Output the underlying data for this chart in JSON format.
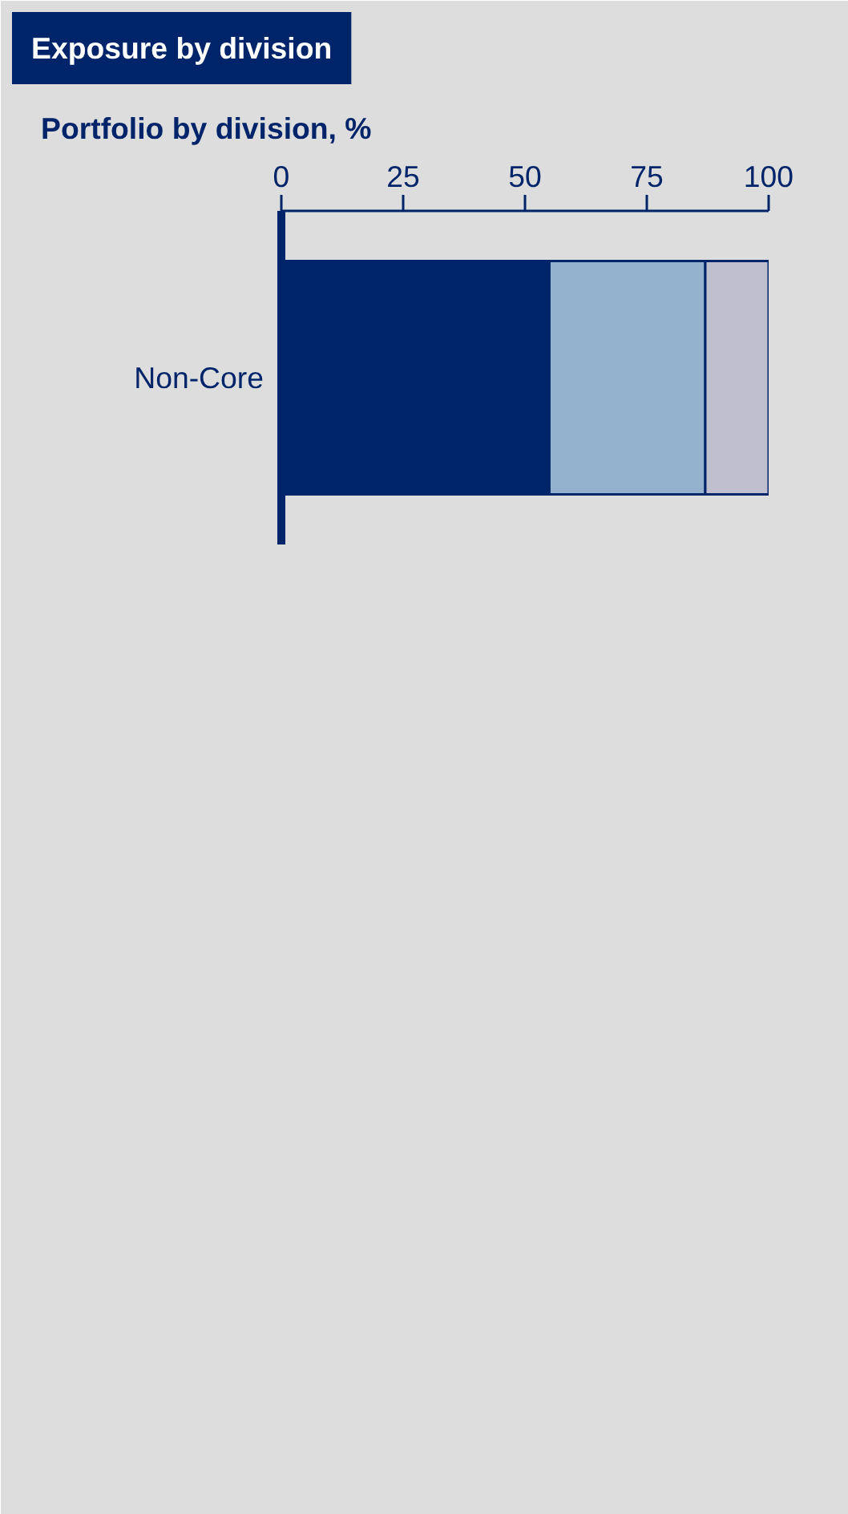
{
  "chart_data": {
    "type": "bar",
    "title": "Exposure by division",
    "subtitle": "Portfolio by division, %",
    "orientation": "horizontal",
    "stacked": true,
    "categories": [
      "Non-Core"
    ],
    "series": [
      {
        "color": "#002469",
        "values": [
          55
        ]
      },
      {
        "color": "#94b2cd",
        "values": [
          32
        ]
      },
      {
        "color": "#c0bfd0",
        "values": [
          13
        ]
      }
    ],
    "xlim": [
      0,
      100
    ],
    "xticks": [
      0,
      25,
      50,
      75,
      100
    ],
    "grid": false
  }
}
